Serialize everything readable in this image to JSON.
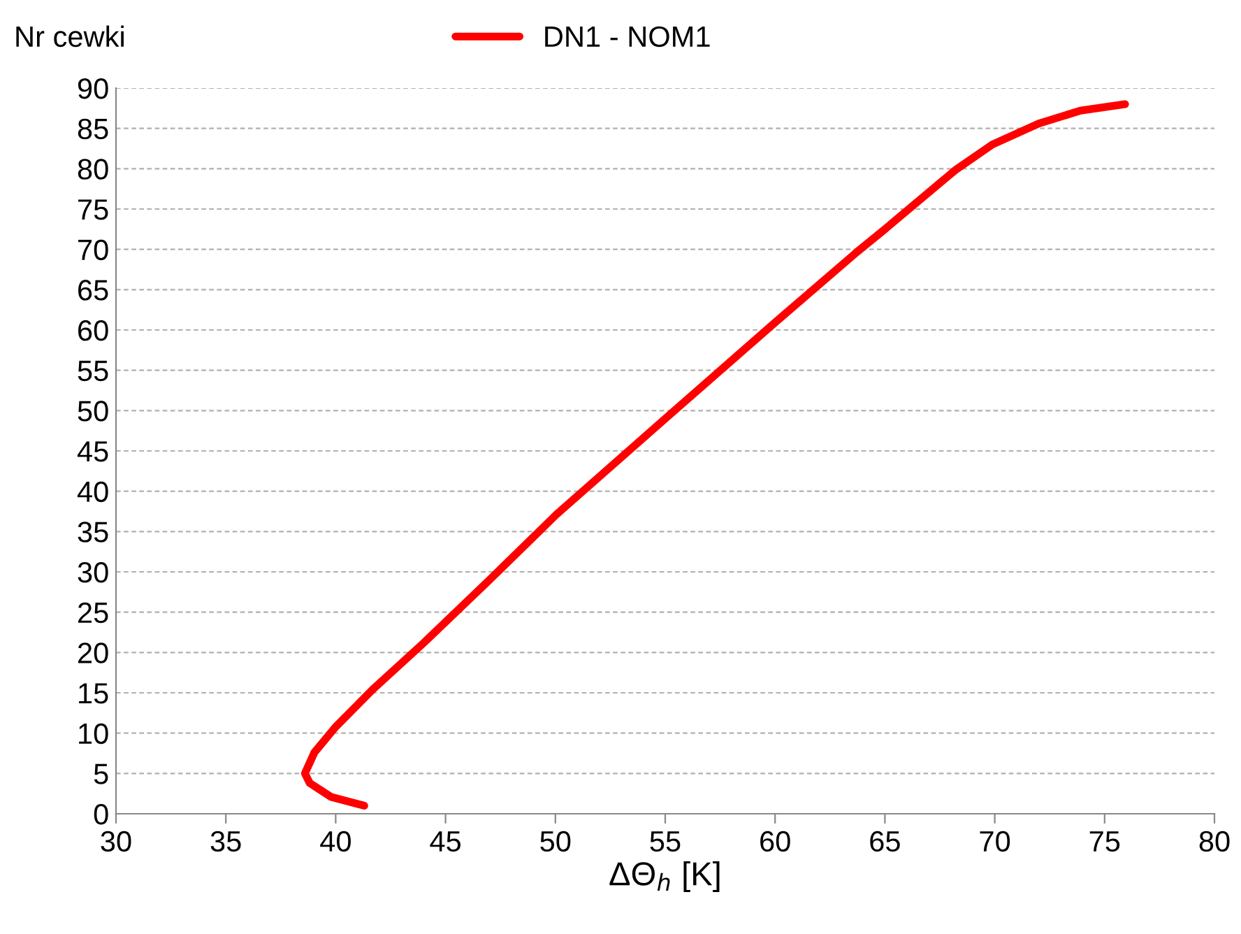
{
  "chart_data": {
    "type": "line",
    "xlabel": "ΔΘ$_{h}$ [K]",
    "ylabel": "Nr cewki",
    "x": [
      41.3,
      39.78,
      38.82,
      38.6,
      39.03,
      39.99,
      41.68,
      44.01,
      47.0,
      50.04,
      55.0,
      60.03,
      63.74,
      65.0,
      68.19,
      69.89,
      72.0,
      73.9,
      75.93
    ],
    "series": [
      {
        "name": "DN1 - NOM1",
        "color": "#ff0000",
        "values": [
          1,
          2.1,
          3.8,
          5,
          7.6,
          10.75,
          15.4,
          21.2,
          29,
          37.1,
          49,
          61,
          69.7,
          72.5,
          79.8,
          83,
          85.6,
          87.2,
          88
        ]
      }
    ],
    "xlim": [
      30,
      80
    ],
    "xticks": [
      30,
      35,
      40,
      45,
      50,
      55,
      60,
      65,
      70,
      75,
      80
    ],
    "ylim": [
      0,
      90
    ],
    "yticks": [
      0,
      5,
      10,
      15,
      20,
      25,
      30,
      35,
      40,
      45,
      50,
      55,
      60,
      65,
      70,
      75,
      80,
      85,
      90
    ],
    "grid": "y",
    "legend": "top",
    "marker": "none",
    "line_style": "solid"
  }
}
